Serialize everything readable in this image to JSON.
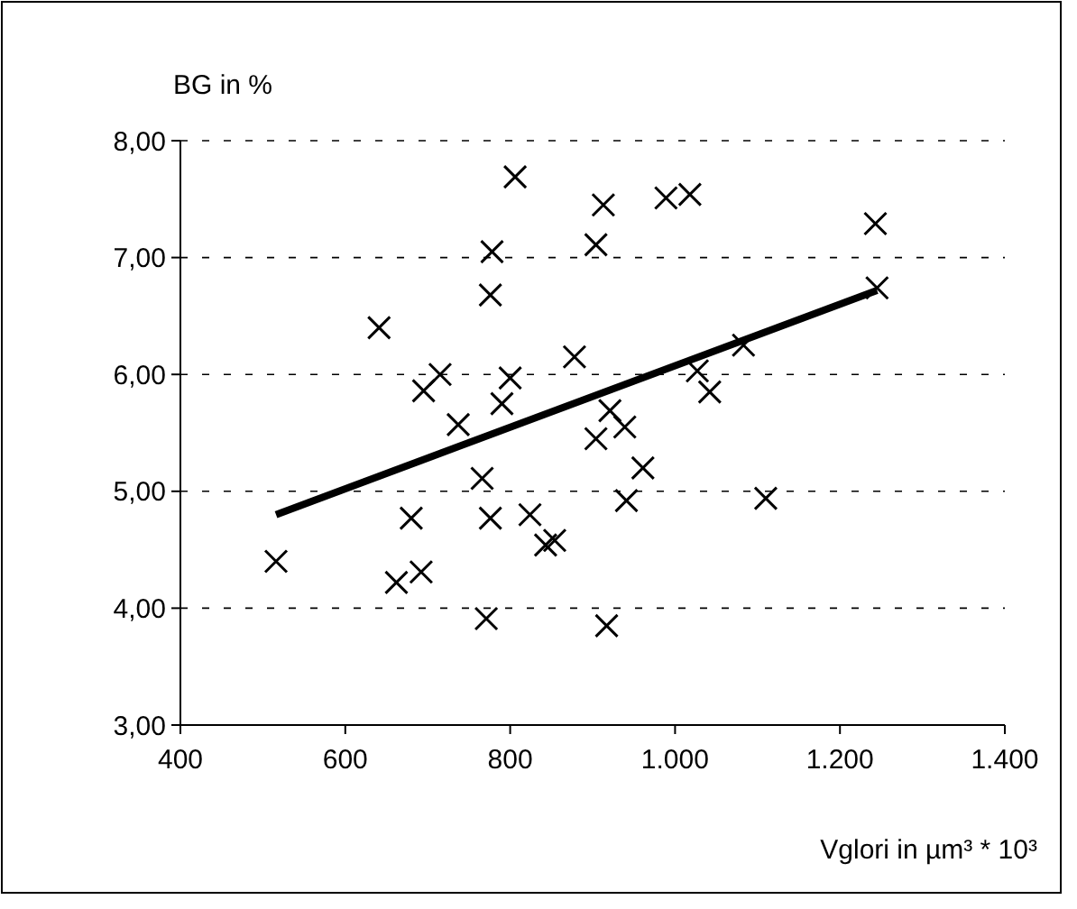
{
  "chart_data": {
    "type": "scatter",
    "ylabel": "BG in %",
    "xlabel": "Vglori in µm³ * 10³",
    "xlim": [
      400,
      1400
    ],
    "ylim": [
      3,
      8
    ],
    "xticks": [
      400,
      600,
      800,
      {
        "value": 1000,
        "label": "1.000"
      },
      {
        "value": 1200,
        "label": "1.200"
      },
      {
        "value": 1400,
        "label": "1.400"
      }
    ],
    "yticks": [
      {
        "value": 3,
        "label": "3,00"
      },
      {
        "value": 4,
        "label": "4,00"
      },
      {
        "value": 5,
        "label": "5,00"
      },
      {
        "value": 6,
        "label": "6,00"
      },
      {
        "value": 7,
        "label": "7,00"
      },
      {
        "value": 8,
        "label": "8,00"
      }
    ],
    "grid": "y",
    "series": [
      {
        "marker": "cross",
        "color": "#000000",
        "x": [
          516,
          641,
          715,
          695,
          737,
          680,
          662,
          692,
          806,
          778,
          776,
          800,
          790,
          766,
          776,
          771,
          824,
          854,
          843,
          878,
          913,
          904,
          904,
          921,
          917,
          989,
          1018,
          939,
          961,
          941,
          1110,
          1027,
          1042,
          1083,
          1243,
          1245
        ],
        "values": [
          4.4,
          6.4,
          6.0,
          5.86,
          5.57,
          4.77,
          4.22,
          4.31,
          7.69,
          7.05,
          6.68,
          5.97,
          5.75,
          5.11,
          4.77,
          3.91,
          4.8,
          4.58,
          4.54,
          6.15,
          7.45,
          7.11,
          5.45,
          5.69,
          3.85,
          7.51,
          7.54,
          5.55,
          5.2,
          4.92,
          4.94,
          6.03,
          5.85,
          6.25,
          7.29,
          6.74
        ]
      },
      {
        "type": "line",
        "color": "#000000",
        "x": [
          516,
          1245
        ],
        "values": [
          4.8,
          6.72
        ]
      }
    ]
  }
}
